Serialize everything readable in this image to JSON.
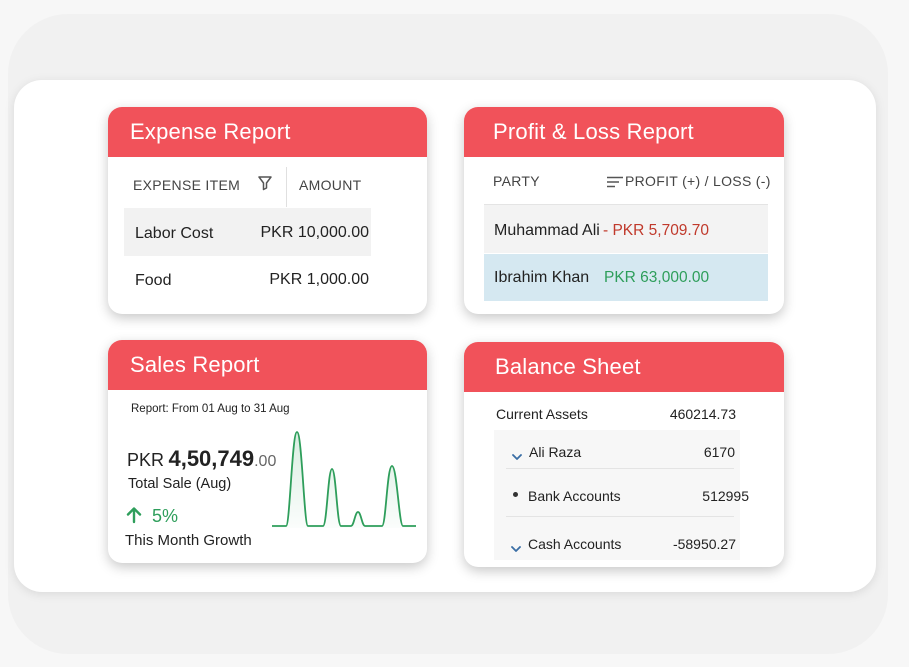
{
  "expense": {
    "title": "Expense Report",
    "col_item": "EXPENSE ITEM",
    "col_amount": "AMOUNT",
    "rows": [
      {
        "item": "Labor Cost",
        "amount": "PKR 10,000.00"
      },
      {
        "item": "Food",
        "amount": "PKR 1,000.00"
      }
    ]
  },
  "pnl": {
    "title": "Profit & Loss Report",
    "col_party": "PARTY",
    "col_profit": "PROFIT (+) / LOSS (-)",
    "rows": [
      {
        "party": "Muhammad Ali",
        "value": "- PKR 5,709.70",
        "color": "#c0392b"
      },
      {
        "party": "Ibrahim Khan",
        "value": "PKR 63,000.00",
        "color": "#2e9e5b"
      }
    ]
  },
  "sales": {
    "title": "Sales Report",
    "period": "Report: From 01 Aug to 31 Aug",
    "currency": "PKR",
    "amount_main": "4,50,749",
    "amount_decimals": ".00",
    "total_label": "Total Sale (Aug)",
    "growth": "5%",
    "growth_label": "This Month Growth",
    "line_color": "#2e9e5b"
  },
  "balance": {
    "title": "Balance Sheet",
    "rows": [
      {
        "label": "Current Assets",
        "value": "460214.73"
      },
      {
        "label": "Ali Raza",
        "value": "6170"
      },
      {
        "label": "Bank Accounts",
        "value": "512995"
      },
      {
        "label": "Cash Accounts",
        "value": "-58950.27"
      }
    ]
  },
  "colors": {
    "header_red": "#f1525a",
    "highlight_blue": "#d5e8f1",
    "row_grey": "#f2f2f2"
  }
}
